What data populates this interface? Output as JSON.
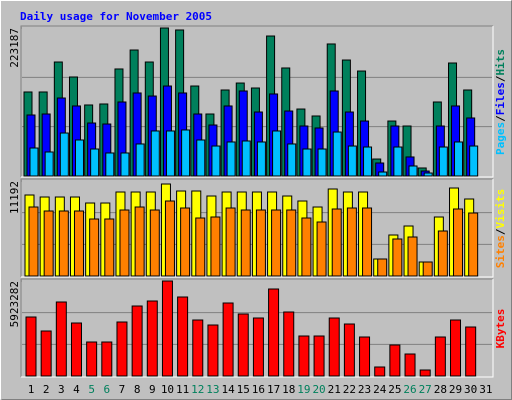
{
  "chart_data": [
    {
      "type": "bar",
      "title": "Daily usage for November 2005",
      "legend_separator": "/",
      "ylim": [
        0,
        223187
      ],
      "yticks": [
        223187
      ],
      "series": [
        {
          "name": "Hits",
          "color": "#00805c",
          "values": [
            126700,
            126700,
            171900,
            149300,
            107100,
            108600,
            161400,
            190000,
            171900,
            223187,
            220200,
            135700,
            93500,
            129700,
            140200,
            132700,
            211100,
            162900,
            101000,
            90500,
            199100,
            174900,
            158300,
            25600,
            82900,
            75400,
            12100,
            111600,
            170400,
            129700,
            null
          ]
        },
        {
          "name": "Files",
          "color": "#0000ff",
          "values": [
            92000,
            93500,
            117600,
            105600,
            79900,
            78400,
            111600,
            125200,
            120600,
            135700,
            125200,
            93500,
            76900,
            105600,
            128200,
            96500,
            123700,
            98000,
            75400,
            72400,
            128200,
            96500,
            82900,
            19600,
            75400,
            28700,
            7500,
            75400,
            105600,
            87500,
            null
          ]
        },
        {
          "name": "Pages",
          "color": "#00c0ff",
          "values": [
            42200,
            36200,
            64800,
            54300,
            40700,
            34700,
            34700,
            48300,
            67900,
            67900,
            69400,
            54300,
            45200,
            51300,
            52800,
            51300,
            67900,
            48300,
            40700,
            40700,
            66300,
            45200,
            43700,
            6000,
            43700,
            15100,
            4500,
            43700,
            51300,
            45200,
            null
          ]
        }
      ]
    },
    {
      "type": "bar",
      "legend_separator": "/",
      "ylim": [
        0,
        11192
      ],
      "yticks": [
        11192
      ],
      "series": [
        {
          "name": "Visits",
          "color": "#ffff00",
          "values": [
            9542,
            9306,
            9306,
            9306,
            8599,
            8599,
            9895,
            9895,
            9895,
            10838,
            10013,
            10013,
            9424,
            9895,
            9895,
            9895,
            9895,
            9424,
            8835,
            8128,
            10249,
            9895,
            9895,
            2003,
            4830,
            5890,
            1649,
            6950,
            10366,
            9071,
            null
          ]
        },
        {
          "name": "Sites",
          "color": "#ff8000",
          "values": [
            8128,
            7657,
            7657,
            7657,
            6715,
            6715,
            7775,
            8128,
            7775,
            8835,
            8010,
            6832,
            6950,
            8010,
            7775,
            7775,
            7775,
            7775,
            6832,
            6361,
            7893,
            8010,
            8010,
            2003,
            4359,
            4594,
            1649,
            5301,
            7893,
            7421,
            null
          ]
        }
      ]
    },
    {
      "type": "bar",
      "ylim": [
        0,
        5923282
      ],
      "yticks": [
        5923282
      ],
      "categories": [
        "1",
        "2",
        "3",
        "4",
        "5",
        "6",
        "7",
        "8",
        "9",
        "10",
        "11",
        "12",
        "13",
        "14",
        "15",
        "16",
        "17",
        "18",
        "19",
        "20",
        "21",
        "22",
        "23",
        "24",
        "25",
        "26",
        "27",
        "28",
        "29",
        "30",
        "31"
      ],
      "category_colors": [
        "#000000",
        "#000000",
        "#000000",
        "#000000",
        "#00805c",
        "#00805c",
        "#000000",
        "#000000",
        "#000000",
        "#000000",
        "#000000",
        "#00805c",
        "#00805c",
        "#000000",
        "#000000",
        "#000000",
        "#000000",
        "#000000",
        "#00805c",
        "#00805c",
        "#000000",
        "#000000",
        "#000000",
        "#000000",
        "#000000",
        "#00805c",
        "#00805c",
        "#000000",
        "#000000",
        "#000000",
        "#000000"
      ],
      "series": [
        {
          "name": "KBytes",
          "color": "#ff0000",
          "values": [
            3678650,
            2805750,
            4613900,
            3304550,
            2119900,
            2119900,
            3366900,
            4364500,
            4676250,
            5923282,
            4925650,
            3491600,
            3179850,
            4551550,
            3865700,
            3616300,
            5424450,
            3990400,
            2494000,
            2494000,
            3616300,
            3242200,
            2431650,
            561150,
            1932850,
            1371700,
            374100,
            2431650,
            3491600,
            3055150,
            null
          ]
        }
      ]
    }
  ]
}
